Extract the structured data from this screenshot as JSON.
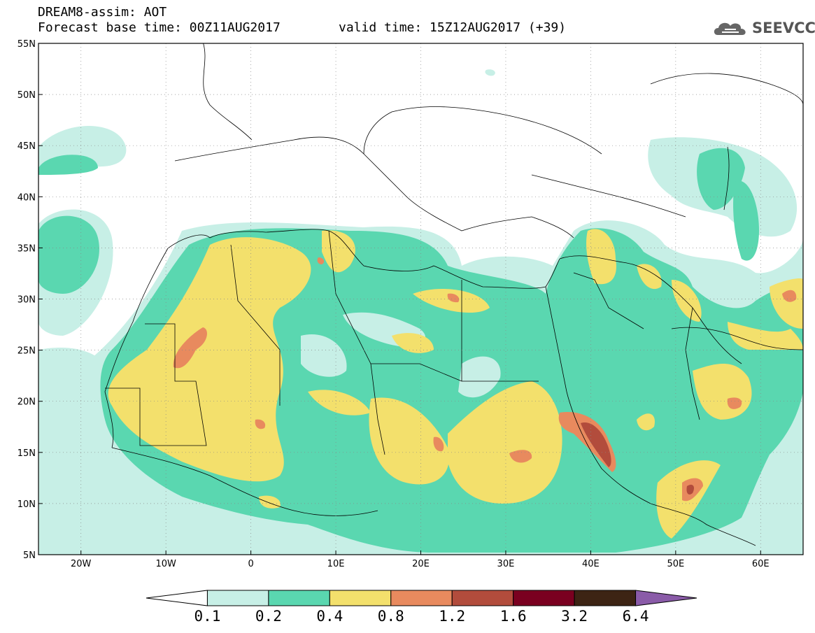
{
  "header": {
    "title": "DREAM8-assim: AOT",
    "base_time": "Forecast base time: 00Z11AUG2017",
    "valid_time": "valid time: 15Z12AUG2017 (+39)",
    "logo": "SEEVCCC"
  },
  "map": {
    "lon_range": [
      -25,
      65
    ],
    "lat_range": [
      5,
      55
    ],
    "grid": true,
    "lat_ticks": [
      {
        "value": 55,
        "label": "55N"
      },
      {
        "value": 50,
        "label": "50N"
      },
      {
        "value": 45,
        "label": "45N"
      },
      {
        "value": 40,
        "label": "40N"
      },
      {
        "value": 35,
        "label": "35N"
      },
      {
        "value": 30,
        "label": "30N"
      },
      {
        "value": 25,
        "label": "25N"
      },
      {
        "value": 20,
        "label": "20N"
      },
      {
        "value": 15,
        "label": "15N"
      },
      {
        "value": 10,
        "label": "10N"
      },
      {
        "value": 5,
        "label": "5N"
      }
    ],
    "lon_ticks": [
      {
        "value": -20,
        "label": "20W"
      },
      {
        "value": -10,
        "label": "10W"
      },
      {
        "value": 0,
        "label": "0"
      },
      {
        "value": 10,
        "label": "10E"
      },
      {
        "value": 20,
        "label": "20E"
      },
      {
        "value": 30,
        "label": "30E"
      },
      {
        "value": 40,
        "label": "40E"
      },
      {
        "value": 50,
        "label": "50E"
      },
      {
        "value": 60,
        "label": "60E"
      }
    ]
  },
  "colorbar": {
    "levels": [
      "0.1",
      "0.2",
      "0.4",
      "0.8",
      "1.2",
      "1.6",
      "3.2",
      "6.4"
    ],
    "colors": [
      "#ffffff",
      "#c7efe6",
      "#5ad7b0",
      "#f3e06c",
      "#e88a5e",
      "#b24c3c",
      "#7a0020",
      "#3d2414",
      "#8a5ba8"
    ]
  }
}
